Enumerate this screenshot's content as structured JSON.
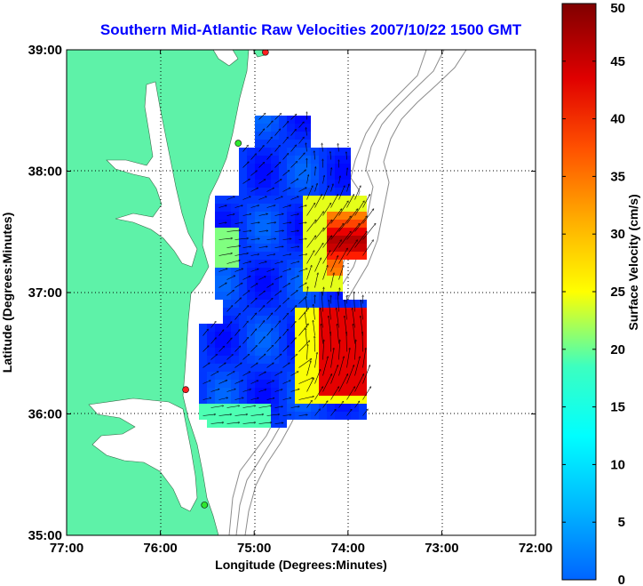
{
  "title": "Southern Mid-Atlantic Raw Velocities 2007/10/22 1500 GMT",
  "map": {
    "xlabel": "Longitude (Degrees:Minutes)",
    "ylabel": "Latitude (Degrees:Minutes)",
    "lon_range": [
      -77,
      -72
    ],
    "lat_range": [
      35,
      39
    ],
    "x_ticks": [
      {
        "value": -77,
        "label": "77:00"
      },
      {
        "value": -76,
        "label": "76:00"
      },
      {
        "value": -75,
        "label": "75:00"
      },
      {
        "value": -74,
        "label": "74:00"
      },
      {
        "value": -73,
        "label": "73:00"
      },
      {
        "value": -72,
        "label": "72:00"
      }
    ],
    "y_ticks": [
      {
        "value": 39,
        "label": "39:00"
      },
      {
        "value": 38,
        "label": "38:00"
      },
      {
        "value": 37,
        "label": "37:00"
      },
      {
        "value": 36,
        "label": "36:00"
      },
      {
        "value": 35,
        "label": "35:00"
      }
    ],
    "grid": "dotted",
    "land_color": "#5ef2a8",
    "station_markers": [
      {
        "lon": -74.88,
        "lat": 38.98,
        "color": "#ff2020"
      },
      {
        "lon": -75.17,
        "lat": 38.23,
        "color": "#2ee82e"
      },
      {
        "lon": -75.73,
        "lat": 36.2,
        "color": "#ff2020"
      },
      {
        "lon": -75.53,
        "lat": 35.25,
        "color": "#2ee82e"
      }
    ]
  },
  "colorbar": {
    "label": "Surface Velocity (cm/s)",
    "min": 0,
    "max": 50,
    "ticks": [
      {
        "value": 50,
        "label": "50"
      },
      {
        "value": 45,
        "label": "45"
      },
      {
        "value": 40,
        "label": "40"
      },
      {
        "value": 35,
        "label": "35"
      },
      {
        "value": 30,
        "label": "30"
      },
      {
        "value": 25,
        "label": "25"
      },
      {
        "value": 20,
        "label": "20"
      },
      {
        "value": 15,
        "label": "15"
      },
      {
        "value": 10,
        "label": "10"
      },
      {
        "value": 5,
        "label": "5"
      },
      {
        "value": 0,
        "label": "0"
      }
    ]
  }
}
